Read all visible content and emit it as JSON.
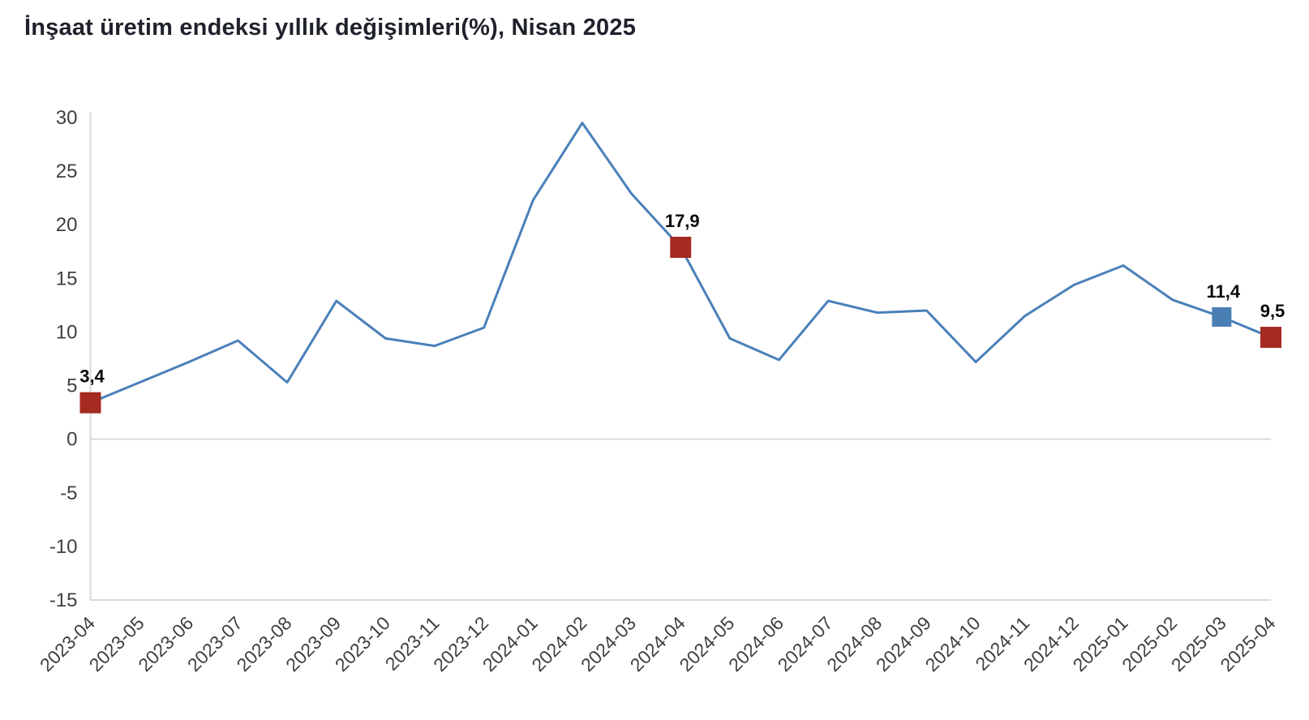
{
  "title": "İnşaat üretim endeksi yıllık değişimleri(%), Nisan 2025",
  "colors": {
    "line": "#4a80b9",
    "marker_blue": "#4a7fb5",
    "marker_red": "#a42a22",
    "axis_line": "#d9d9d9",
    "tick_text": "#3f3f3f",
    "title_text": "#1f222b",
    "point_label_text": "#0a0a0a"
  },
  "chart_data": {
    "type": "line",
    "title": "İnşaat üretim endeksi yıllık değişimleri(%), Nisan 2025",
    "xlabel": "",
    "ylabel": "",
    "legend": "none",
    "grid": "zero-line-and-bottom-border-only",
    "ylim": [
      -15,
      30
    ],
    "yticks": [
      30,
      25,
      20,
      15,
      10,
      5,
      0,
      -5,
      -10,
      -15
    ],
    "x_tick_rotation_deg": 45,
    "categories": [
      "2023-04",
      "2023-05",
      "2023-06",
      "2023-07",
      "2023-08",
      "2023-09",
      "2023-10",
      "2023-11",
      "2023-12",
      "2024-01",
      "2024-02",
      "2024-03",
      "2024-04",
      "2024-05",
      "2024-06",
      "2024-07",
      "2024-08",
      "2024-09",
      "2024-10",
      "2024-11",
      "2024-12",
      "2025-01",
      "2025-02",
      "2025-03",
      "2025-04"
    ],
    "values": [
      3.4,
      5.3,
      7.2,
      9.2,
      5.3,
      12.9,
      9.4,
      8.7,
      10.4,
      22.3,
      29.5,
      22.9,
      17.9,
      9.4,
      7.4,
      12.9,
      11.8,
      12.0,
      7.2,
      11.5,
      14.4,
      16.2,
      13.0,
      11.4,
      9.5
    ],
    "markers": [
      {
        "index": 0,
        "category": "2023-04",
        "value": 3.4,
        "label": "3,4",
        "color": "red",
        "size": 26
      },
      {
        "index": 12,
        "category": "2024-04",
        "value": 17.9,
        "label": "17,9",
        "color": "red",
        "size": 26
      },
      {
        "index": 23,
        "category": "2025-03",
        "value": 11.4,
        "label": "11,4",
        "color": "blue",
        "size": 24
      },
      {
        "index": 24,
        "category": "2025-04",
        "value": 9.5,
        "label": "9,5",
        "color": "red",
        "size": 26
      }
    ]
  }
}
